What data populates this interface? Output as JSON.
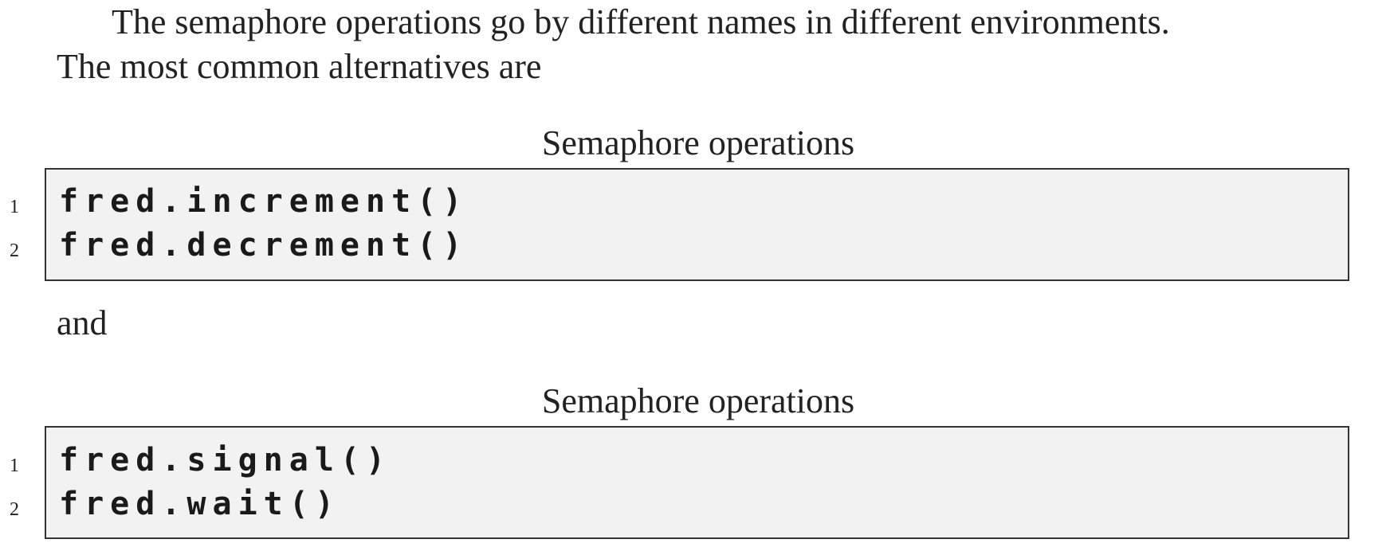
{
  "intro": {
    "line1": "The semaphore operations go by different names in different environments.",
    "line2": "The most common alternatives are"
  },
  "listings": [
    {
      "caption": "Semaphore operations",
      "lines": [
        {
          "number": "1",
          "code": "fred.increment()"
        },
        {
          "number": "2",
          "code": "fred.decrement()"
        }
      ]
    },
    {
      "caption": "Semaphore operations",
      "lines": [
        {
          "number": "1",
          "code": "fred.signal()"
        },
        {
          "number": "2",
          "code": "fred.wait()"
        }
      ]
    }
  ],
  "connector": "and"
}
